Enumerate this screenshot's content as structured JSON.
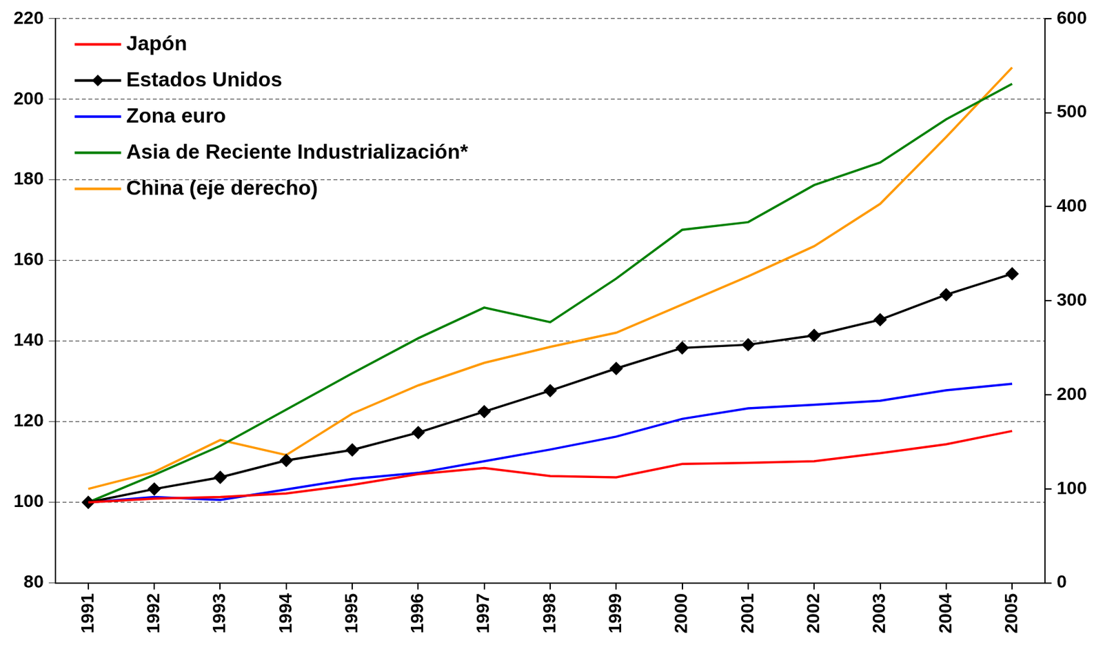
{
  "chart_data": {
    "type": "line",
    "categories": [
      "1991",
      "1992",
      "1993",
      "1994",
      "1995",
      "1996",
      "1997",
      "1998",
      "1999",
      "2000",
      "2001",
      "2002",
      "2003",
      "2004",
      "2005"
    ],
    "series": [
      {
        "name": "Japón",
        "color": "#ff0000",
        "values": [
          100,
          100.9,
          101.3,
          102.2,
          104.3,
          107,
          108.5,
          106.5,
          106.2,
          109.5,
          109.8,
          110.2,
          112.2,
          114.4,
          117.7
        ]
      },
      {
        "name": "Estados Unidos",
        "color": "#000000",
        "marker": "diamond",
        "values": [
          100,
          103.3,
          106.2,
          110.4,
          113,
          117.3,
          122.5,
          127.7,
          133.2,
          138.3,
          139.1,
          141.4,
          145.3,
          151.5,
          156.7
        ]
      },
      {
        "name": "Zona euro",
        "color": "#0000ff",
        "values": [
          100,
          101.3,
          100.6,
          103.2,
          105.8,
          107.3,
          110.2,
          113.1,
          116.3,
          120.7,
          123.3,
          124.2,
          125.2,
          127.8,
          129.4
        ]
      },
      {
        "name": "Asia de Reciente Industrialización*",
        "color": "#008000",
        "values": [
          100,
          106.8,
          114,
          123,
          132,
          140.7,
          148.3,
          144.7,
          155.5,
          167.6,
          169.5,
          178.7,
          184.3,
          195,
          203.8
        ]
      },
      {
        "name": "China (eje derecho)",
        "color": "#ff9900",
        "axis": "y2",
        "values": [
          100,
          118,
          152,
          136,
          180,
          210,
          234,
          251,
          266,
          296,
          326,
          358,
          403,
          474,
          548
        ]
      }
    ],
    "ylim": [
      80,
      220
    ],
    "yticks": [
      80,
      100,
      120,
      140,
      160,
      180,
      200,
      220
    ],
    "y2lim": [
      0,
      600
    ],
    "y2ticks": [
      0,
      100,
      200,
      300,
      400,
      500,
      600
    ],
    "grid": true,
    "legend": "top-left"
  }
}
